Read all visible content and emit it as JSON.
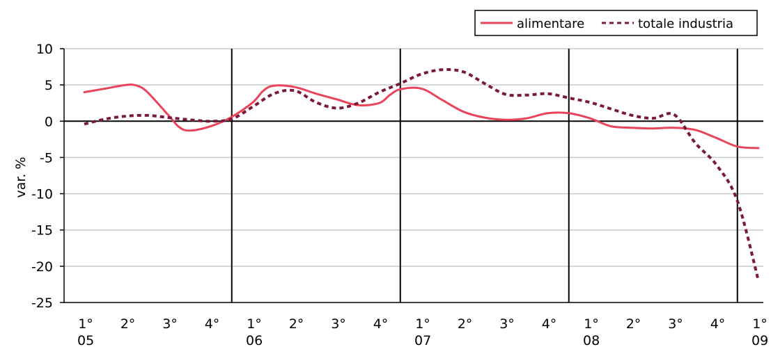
{
  "chart_data": {
    "type": "line",
    "title": "",
    "xlabel": "",
    "ylabel": "var. %",
    "ylim": [
      -25,
      10
    ],
    "y_ticks": [
      10,
      5,
      0,
      -5,
      -10,
      -15,
      -20,
      -25
    ],
    "grid": true,
    "legend_position": "top-right",
    "categories": [
      "1°",
      "2°",
      "3°",
      "4°",
      "1°",
      "2°",
      "3°",
      "4°",
      "1°",
      "2°",
      "3°",
      "4°",
      "1°",
      "2°",
      "3°",
      "4°",
      "1°"
    ],
    "years": [
      {
        "label": "05",
        "index": 0
      },
      {
        "label": "06",
        "index": 4
      },
      {
        "label": "07",
        "index": 8
      },
      {
        "label": "08",
        "index": 12
      },
      {
        "label": "09",
        "index": 16
      }
    ],
    "year_separators": [
      4,
      8,
      12,
      16
    ],
    "series": [
      {
        "name": "alimentare",
        "color": "#e8445a",
        "style": "solid",
        "x": [
          0,
          0.5,
          1,
          1.25,
          1.5,
          2,
          2.25,
          2.5,
          3,
          3.5,
          4,
          4.25,
          4.5,
          5,
          5.5,
          6,
          6.5,
          7,
          7.25,
          7.5,
          8,
          8.5,
          9,
          9.5,
          10,
          10.5,
          11,
          11.5,
          12,
          12.5,
          13,
          13.5,
          14,
          14.5,
          15,
          15.5,
          16
        ],
        "values": [
          4.0,
          4.5,
          5.0,
          4.9,
          4.0,
          0.8,
          -0.8,
          -1.3,
          -0.7,
          0.6,
          2.6,
          4.2,
          4.9,
          4.7,
          3.8,
          3.0,
          2.2,
          2.5,
          3.6,
          4.4,
          4.5,
          2.9,
          1.3,
          0.5,
          0.2,
          0.4,
          1.1,
          1.1,
          0.4,
          -0.7,
          -0.9,
          -1.0,
          -0.9,
          -1.2,
          -2.3,
          -3.5,
          -3.7
        ]
      },
      {
        "name": "totale industria",
        "color": "#7a1a3a",
        "style": "dotted",
        "x": [
          0,
          0.5,
          1,
          1.5,
          2,
          2.5,
          3,
          3.5,
          4,
          4.5,
          5,
          5.5,
          6,
          6.5,
          7,
          7.5,
          8,
          8.5,
          9,
          9.5,
          10,
          10.5,
          11,
          11.5,
          12,
          12.5,
          13,
          13.5,
          14,
          14.5,
          15,
          15.5,
          16,
          16.5,
          17
        ],
        "values": [
          -0.4,
          0.3,
          0.7,
          0.8,
          0.5,
          0.2,
          0.0,
          0.3,
          2.0,
          3.8,
          4.2,
          2.6,
          1.8,
          2.5,
          4.0,
          5.2,
          6.5,
          7.1,
          6.8,
          5.2,
          3.7,
          3.6,
          3.8,
          3.2,
          2.6,
          1.7,
          0.8,
          0.4,
          0.9,
          -3.0,
          -6.0,
          -11.0,
          -22.0,
          -22.0,
          -22.0
        ]
      }
    ]
  }
}
